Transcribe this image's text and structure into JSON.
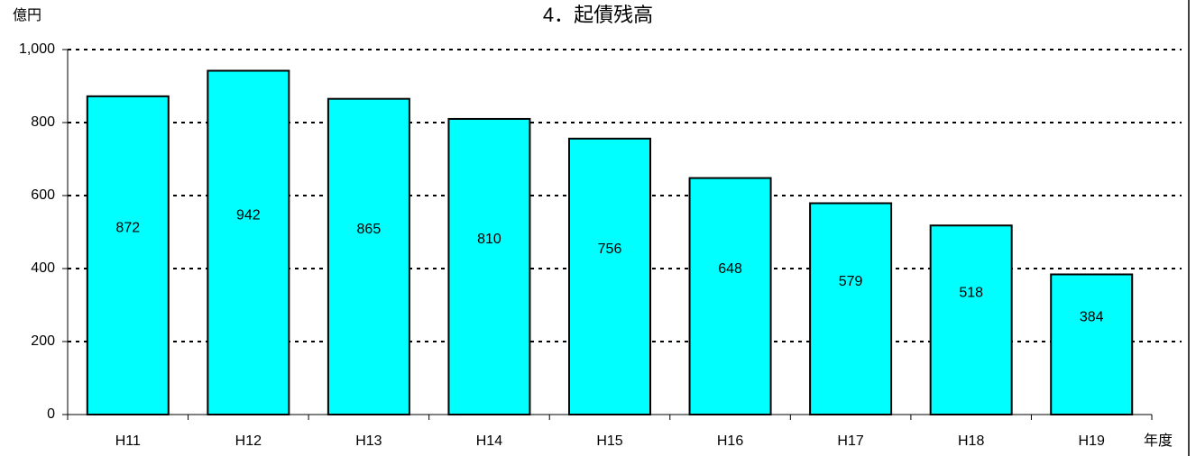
{
  "chart_data": {
    "type": "bar",
    "title": "4．起債残高",
    "y_unit_label": "億円",
    "x_axis_label": "年度",
    "categories": [
      "H11",
      "H12",
      "H13",
      "H14",
      "H15",
      "H16",
      "H17",
      "H18",
      "H19"
    ],
    "values": [
      872,
      942,
      865,
      810,
      756,
      648,
      579,
      518,
      384
    ],
    "color": "#00ffff",
    "ylim": [
      0,
      1000
    ],
    "yticks": [
      0,
      200,
      400,
      600,
      800,
      {
        "value": 1000,
        "label": "1,000"
      }
    ],
    "grid": true
  }
}
